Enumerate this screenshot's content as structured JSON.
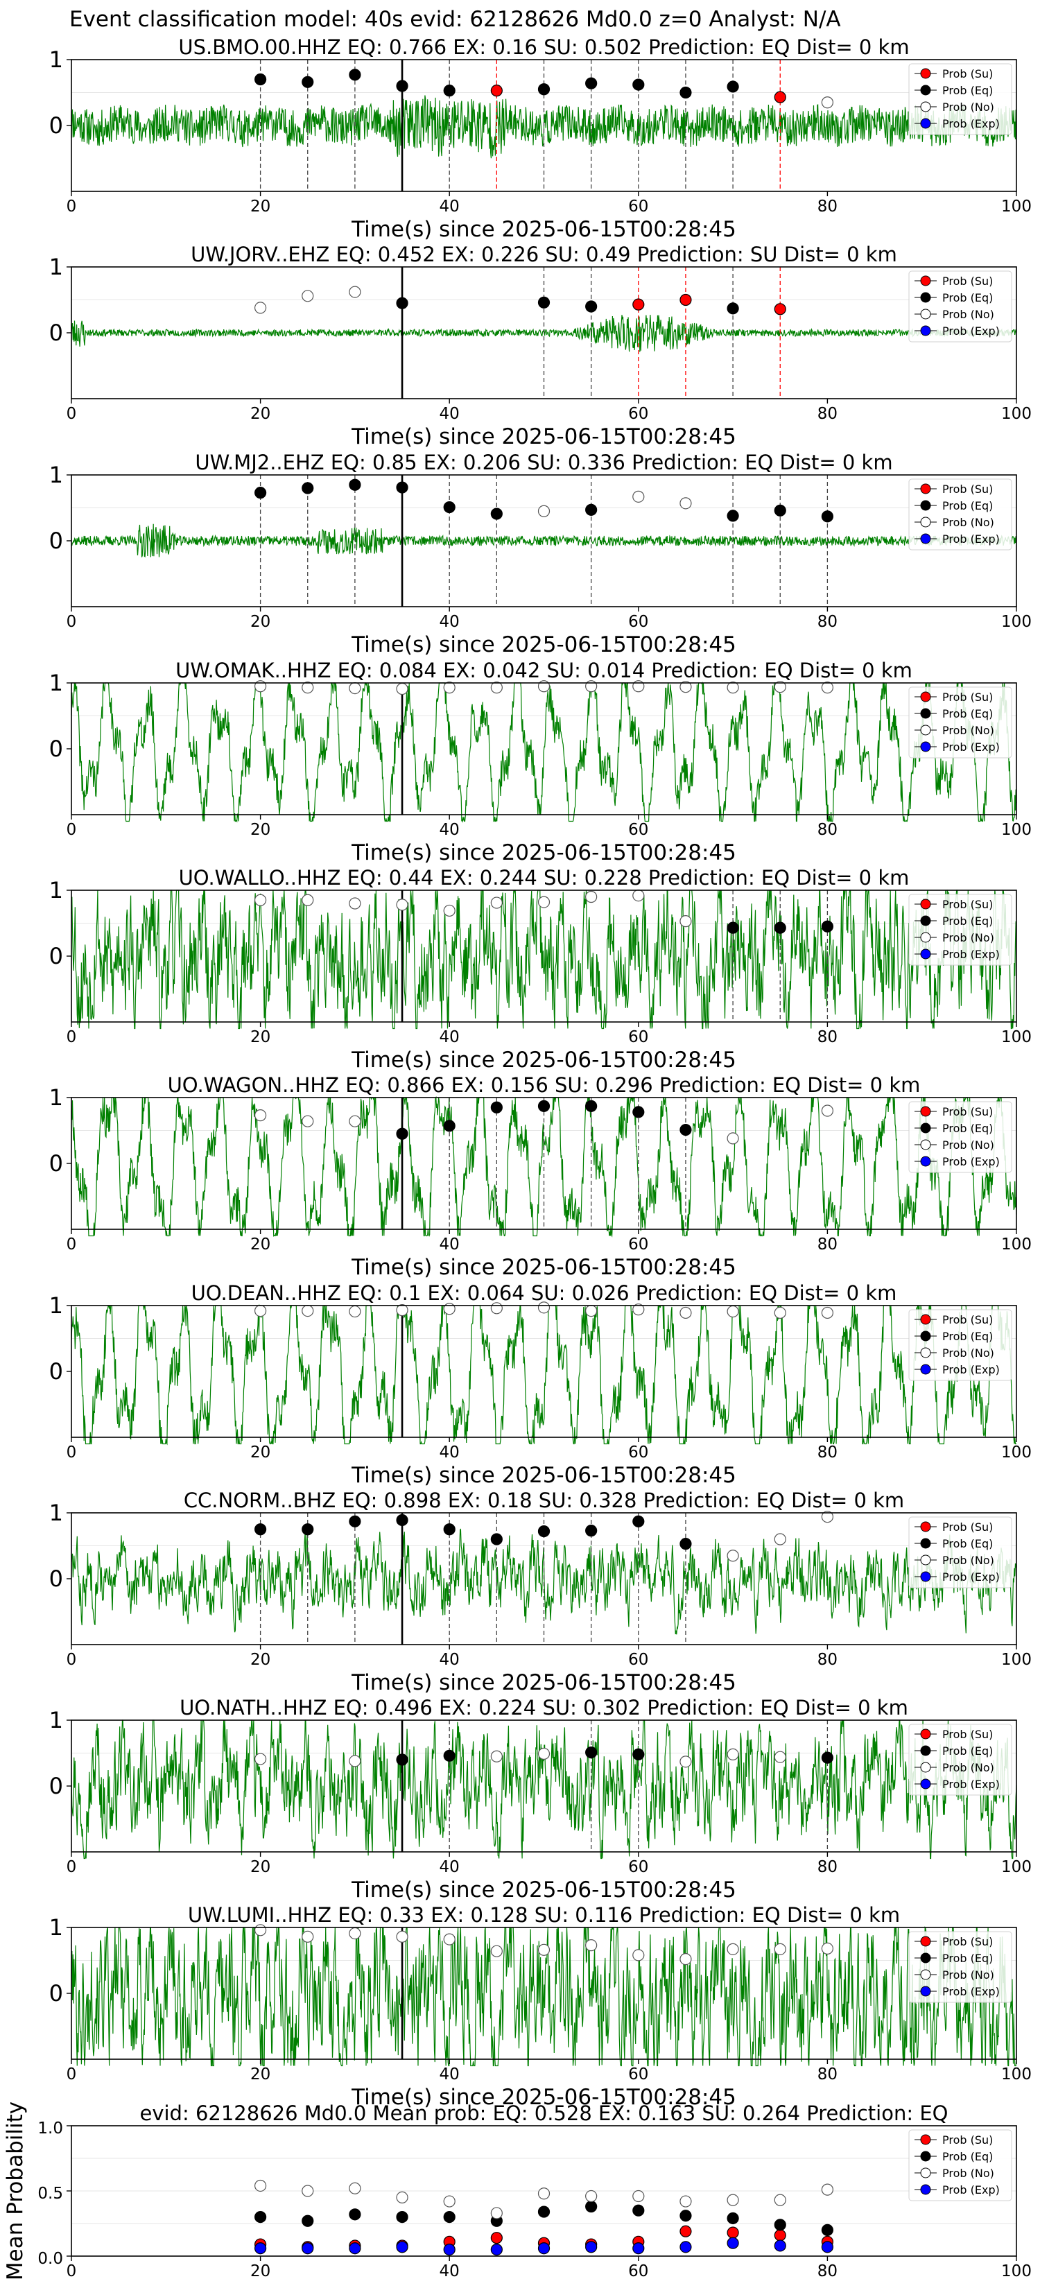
{
  "suptitle": "Event classification model: 40s evid: 62128626 Md0.0 z=0 Analyst: N/A",
  "colors": {
    "waveform": "#008000",
    "su": "#ff0000",
    "eq": "#000000",
    "no": "#ffffff",
    "exp": "#0000ff",
    "eq_line": "#444444",
    "su_line": "#ff0000",
    "arrival_line": "#000000",
    "grid": "#e6e6e6"
  },
  "legend": [
    "Prob (Su)",
    "Prob (Eq)",
    "Prob (No)",
    "Prob (Exp)"
  ],
  "chart_data": [
    {
      "type": "scatter",
      "title": "US.BMO.00.HHZ   EQ: 0.766  EX: 0.16  SU: 0.502   Prediction: EQ    Dist= 0 km",
      "xlabel": "Time(s) since 2025-06-15T00:28:45",
      "xlim": [
        0,
        100
      ],
      "ylim": [
        -1,
        1
      ],
      "xticks": [
        "0",
        "20",
        "40",
        "60",
        "80",
        "100"
      ],
      "yticks": [
        "1",
        "0"
      ],
      "arrival": 35,
      "waveform": {
        "style": "bmo",
        "amp": 0.35,
        "seed": 11
      },
      "points": [
        {
          "t": 20,
          "c": "eq",
          "v": 0.7
        },
        {
          "t": 25,
          "c": "eq",
          "v": 0.66
        },
        {
          "t": 30,
          "c": "eq",
          "v": 0.77
        },
        {
          "t": 35,
          "c": "eq",
          "v": 0.6
        },
        {
          "t": 40,
          "c": "eq",
          "v": 0.53
        },
        {
          "t": 45,
          "c": "su",
          "v": 0.53
        },
        {
          "t": 50,
          "c": "eq",
          "v": 0.55
        },
        {
          "t": 55,
          "c": "eq",
          "v": 0.64
        },
        {
          "t": 60,
          "c": "eq",
          "v": 0.62
        },
        {
          "t": 65,
          "c": "eq",
          "v": 0.5
        },
        {
          "t": 70,
          "c": "eq",
          "v": 0.59
        },
        {
          "t": 75,
          "c": "su",
          "v": 0.43
        },
        {
          "t": 80,
          "c": "no",
          "v": 0.35
        }
      ]
    },
    {
      "type": "scatter",
      "title": "UW.JORV..EHZ   EQ: 0.452  EX: 0.226  SU: 0.49   Prediction: SU    Dist= 0 km",
      "xlabel": "Time(s) since 2025-06-15T00:28:45",
      "xlim": [
        0,
        100
      ],
      "ylim": [
        -1,
        1
      ],
      "xticks": [
        "0",
        "20",
        "40",
        "60",
        "80",
        "100"
      ],
      "yticks": [
        "1",
        "0"
      ],
      "arrival": 35,
      "waveform": {
        "style": "jorv",
        "amp": 0.1,
        "seed": 23
      },
      "points": [
        {
          "t": 20,
          "c": "no",
          "v": 0.38
        },
        {
          "t": 25,
          "c": "no",
          "v": 0.56
        },
        {
          "t": 30,
          "c": "no",
          "v": 0.62
        },
        {
          "t": 35,
          "c": "eq",
          "v": 0.45
        },
        {
          "t": 50,
          "c": "eq",
          "v": 0.46
        },
        {
          "t": 55,
          "c": "eq",
          "v": 0.4
        },
        {
          "t": 60,
          "c": "su",
          "v": 0.43
        },
        {
          "t": 65,
          "c": "su",
          "v": 0.5
        },
        {
          "t": 70,
          "c": "eq",
          "v": 0.37
        },
        {
          "t": 75,
          "c": "su",
          "v": 0.36
        }
      ]
    },
    {
      "type": "scatter",
      "title": "UW.MJ2..EHZ   EQ: 0.85  EX: 0.206  SU: 0.336   Prediction: EQ    Dist= 0 km",
      "xlabel": "Time(s) since 2025-06-15T00:28:45",
      "xlim": [
        0,
        100
      ],
      "ylim": [
        -1,
        1
      ],
      "xticks": [
        "0",
        "20",
        "40",
        "60",
        "80",
        "100"
      ],
      "yticks": [
        "1",
        "0"
      ],
      "arrival": 35,
      "waveform": {
        "style": "mj2",
        "amp": 0.12,
        "seed": 37
      },
      "points": [
        {
          "t": 20,
          "c": "eq",
          "v": 0.73
        },
        {
          "t": 25,
          "c": "eq",
          "v": 0.8
        },
        {
          "t": 30,
          "c": "eq",
          "v": 0.85
        },
        {
          "t": 35,
          "c": "eq",
          "v": 0.81
        },
        {
          "t": 40,
          "c": "eq",
          "v": 0.51
        },
        {
          "t": 45,
          "c": "eq",
          "v": 0.41
        },
        {
          "t": 50,
          "c": "no",
          "v": 0.45
        },
        {
          "t": 55,
          "c": "eq",
          "v": 0.47
        },
        {
          "t": 60,
          "c": "no",
          "v": 0.67
        },
        {
          "t": 65,
          "c": "no",
          "v": 0.57
        },
        {
          "t": 70,
          "c": "eq",
          "v": 0.38
        },
        {
          "t": 75,
          "c": "eq",
          "v": 0.46
        },
        {
          "t": 80,
          "c": "eq",
          "v": 0.37
        }
      ]
    },
    {
      "type": "scatter",
      "title": "UW.OMAK..HHZ   EQ: 0.084  EX: 0.042  SU: 0.014   Prediction: EQ    Dist= 0 km",
      "xlabel": "Time(s) since 2025-06-15T00:28:45",
      "xlim": [
        0,
        100
      ],
      "ylim": [
        -1,
        1
      ],
      "xticks": [
        "0",
        "20",
        "40",
        "60",
        "80",
        "100"
      ],
      "yticks": [
        "1",
        "0"
      ],
      "arrival": 35,
      "waveform": {
        "style": "swell",
        "amp": 0.5,
        "seed": 41
      },
      "points": [
        {
          "t": 20,
          "c": "no",
          "v": 0.95
        },
        {
          "t": 25,
          "c": "no",
          "v": 0.93
        },
        {
          "t": 30,
          "c": "no",
          "v": 0.92
        },
        {
          "t": 35,
          "c": "no",
          "v": 0.91
        },
        {
          "t": 40,
          "c": "no",
          "v": 0.93
        },
        {
          "t": 45,
          "c": "no",
          "v": 0.93
        },
        {
          "t": 50,
          "c": "no",
          "v": 0.95
        },
        {
          "t": 55,
          "c": "no",
          "v": 0.95
        },
        {
          "t": 60,
          "c": "no",
          "v": 0.95
        },
        {
          "t": 65,
          "c": "no",
          "v": 0.94
        },
        {
          "t": 70,
          "c": "no",
          "v": 0.93
        },
        {
          "t": 75,
          "c": "no",
          "v": 0.94
        },
        {
          "t": 80,
          "c": "no",
          "v": 0.93
        }
      ]
    },
    {
      "type": "scatter",
      "title": "UO.WALLO..HHZ   EQ: 0.44  EX: 0.244  SU: 0.228   Prediction: EQ    Dist= 0 km",
      "xlabel": "Time(s) since 2025-06-15T00:28:45",
      "xlim": [
        0,
        100
      ],
      "ylim": [
        -1,
        1
      ],
      "xticks": [
        "0",
        "20",
        "40",
        "60",
        "80",
        "100"
      ],
      "yticks": [
        "1",
        "0"
      ],
      "arrival": 35,
      "waveform": {
        "style": "noisy",
        "amp": 0.7,
        "seed": 53
      },
      "points": [
        {
          "t": 20,
          "c": "no",
          "v": 0.85
        },
        {
          "t": 25,
          "c": "no",
          "v": 0.85
        },
        {
          "t": 30,
          "c": "no",
          "v": 0.8
        },
        {
          "t": 35,
          "c": "no",
          "v": 0.78
        },
        {
          "t": 40,
          "c": "no",
          "v": 0.69
        },
        {
          "t": 45,
          "c": "no",
          "v": 0.81
        },
        {
          "t": 50,
          "c": "no",
          "v": 0.82
        },
        {
          "t": 55,
          "c": "no",
          "v": 0.9
        },
        {
          "t": 60,
          "c": "no",
          "v": 0.92
        },
        {
          "t": 65,
          "c": "no",
          "v": 0.53
        },
        {
          "t": 70,
          "c": "eq",
          "v": 0.43
        },
        {
          "t": 75,
          "c": "eq",
          "v": 0.43
        },
        {
          "t": 80,
          "c": "eq",
          "v": 0.45
        }
      ]
    },
    {
      "type": "scatter",
      "title": "UO.WAGON..HHZ   EQ: 0.866  EX: 0.156  SU: 0.296   Prediction: EQ    Dist= 0 km",
      "xlabel": "Time(s) since 2025-06-15T00:28:45",
      "xlim": [
        0,
        100
      ],
      "ylim": [
        -1,
        1
      ],
      "xticks": [
        "0",
        "20",
        "40",
        "60",
        "80",
        "100"
      ],
      "yticks": [
        "1",
        "0"
      ],
      "arrival": 35,
      "waveform": {
        "style": "swell",
        "amp": 0.55,
        "seed": 67
      },
      "points": [
        {
          "t": 20,
          "c": "no",
          "v": 0.73
        },
        {
          "t": 25,
          "c": "no",
          "v": 0.64
        },
        {
          "t": 30,
          "c": "no",
          "v": 0.64
        },
        {
          "t": 35,
          "c": "eq",
          "v": 0.45
        },
        {
          "t": 40,
          "c": "eq",
          "v": 0.57
        },
        {
          "t": 45,
          "c": "eq",
          "v": 0.85
        },
        {
          "t": 50,
          "c": "eq",
          "v": 0.87
        },
        {
          "t": 55,
          "c": "eq",
          "v": 0.87
        },
        {
          "t": 60,
          "c": "eq",
          "v": 0.78
        },
        {
          "t": 65,
          "c": "eq",
          "v": 0.51
        },
        {
          "t": 70,
          "c": "no",
          "v": 0.38
        },
        {
          "t": 80,
          "c": "no",
          "v": 0.8
        }
      ]
    },
    {
      "type": "scatter",
      "title": "UO.DEAN..HHZ   EQ: 0.1  EX: 0.064  SU: 0.026   Prediction: EQ    Dist= 0 km",
      "xlabel": "Time(s) since 2025-06-15T00:28:45",
      "xlim": [
        0,
        100
      ],
      "ylim": [
        -1,
        1
      ],
      "xticks": [
        "0",
        "20",
        "40",
        "60",
        "80",
        "100"
      ],
      "yticks": [
        "1",
        "0"
      ],
      "arrival": 35,
      "waveform": {
        "style": "swell",
        "amp": 0.6,
        "seed": 71
      },
      "points": [
        {
          "t": 20,
          "c": "no",
          "v": 0.92
        },
        {
          "t": 25,
          "c": "no",
          "v": 0.92
        },
        {
          "t": 30,
          "c": "no",
          "v": 0.91
        },
        {
          "t": 35,
          "c": "no",
          "v": 0.93
        },
        {
          "t": 40,
          "c": "no",
          "v": 0.95
        },
        {
          "t": 45,
          "c": "no",
          "v": 0.96
        },
        {
          "t": 50,
          "c": "no",
          "v": 0.97
        },
        {
          "t": 55,
          "c": "no",
          "v": 0.92
        },
        {
          "t": 60,
          "c": "no",
          "v": 0.94
        },
        {
          "t": 65,
          "c": "no",
          "v": 0.89
        },
        {
          "t": 70,
          "c": "no",
          "v": 0.91
        },
        {
          "t": 75,
          "c": "no",
          "v": 0.89
        },
        {
          "t": 80,
          "c": "no",
          "v": 0.89
        }
      ]
    },
    {
      "type": "scatter",
      "title": "CC.NORM..BHZ   EQ: 0.898  EX: 0.18  SU: 0.328   Prediction: EQ    Dist= 0 km",
      "xlabel": "Time(s) since 2025-06-15T00:28:45",
      "xlim": [
        0,
        100
      ],
      "ylim": [
        -1,
        1
      ],
      "xticks": [
        "0",
        "20",
        "40",
        "60",
        "80",
        "100"
      ],
      "yticks": [
        "1",
        "0"
      ],
      "arrival": 35,
      "waveform": {
        "style": "noisy",
        "amp": 0.35,
        "seed": 83
      },
      "points": [
        {
          "t": 20,
          "c": "eq",
          "v": 0.75
        },
        {
          "t": 25,
          "c": "eq",
          "v": 0.75
        },
        {
          "t": 30,
          "c": "eq",
          "v": 0.87
        },
        {
          "t": 35,
          "c": "eq",
          "v": 0.89
        },
        {
          "t": 40,
          "c": "eq",
          "v": 0.75
        },
        {
          "t": 45,
          "c": "eq",
          "v": 0.6
        },
        {
          "t": 50,
          "c": "eq",
          "v": 0.72
        },
        {
          "t": 55,
          "c": "eq",
          "v": 0.73
        },
        {
          "t": 60,
          "c": "eq",
          "v": 0.87
        },
        {
          "t": 65,
          "c": "eq",
          "v": 0.53
        },
        {
          "t": 70,
          "c": "no",
          "v": 0.35
        },
        {
          "t": 75,
          "c": "no",
          "v": 0.6
        },
        {
          "t": 80,
          "c": "no",
          "v": 0.94
        }
      ]
    },
    {
      "type": "scatter",
      "title": "UO.NATH..HHZ   EQ: 0.496  EX: 0.224  SU: 0.302   Prediction: EQ    Dist= 0 km",
      "xlabel": "Time(s) since 2025-06-15T00:28:45",
      "xlim": [
        0,
        100
      ],
      "ylim": [
        -1,
        1
      ],
      "xticks": [
        "0",
        "20",
        "40",
        "60",
        "80",
        "100"
      ],
      "yticks": [
        "1",
        "0"
      ],
      "arrival": 35,
      "waveform": {
        "style": "noisy",
        "amp": 0.55,
        "seed": 97
      },
      "points": [
        {
          "t": 20,
          "c": "no",
          "v": 0.41
        },
        {
          "t": 30,
          "c": "no",
          "v": 0.38
        },
        {
          "t": 35,
          "c": "eq",
          "v": 0.4
        },
        {
          "t": 40,
          "c": "eq",
          "v": 0.46
        },
        {
          "t": 45,
          "c": "no",
          "v": 0.45
        },
        {
          "t": 50,
          "c": "no",
          "v": 0.49
        },
        {
          "t": 55,
          "c": "eq",
          "v": 0.51
        },
        {
          "t": 60,
          "c": "eq",
          "v": 0.48
        },
        {
          "t": 65,
          "c": "no",
          "v": 0.37
        },
        {
          "t": 70,
          "c": "no",
          "v": 0.48
        },
        {
          "t": 75,
          "c": "no",
          "v": 0.44
        },
        {
          "t": 80,
          "c": "eq",
          "v": 0.43
        }
      ]
    },
    {
      "type": "scatter",
      "title": "UW.LUMI..HHZ   EQ: 0.33  EX: 0.128  SU: 0.116   Prediction: EQ    Dist= 0 km",
      "xlabel": "Time(s) since 2025-06-15T00:28:45",
      "xlim": [
        0,
        100
      ],
      "ylim": [
        -1,
        1
      ],
      "xticks": [
        "0",
        "20",
        "40",
        "60",
        "80",
        "100"
      ],
      "yticks": [
        "1",
        "0"
      ],
      "arrival": 35,
      "waveform": {
        "style": "noisy",
        "amp": 0.8,
        "seed": 101
      },
      "points": [
        {
          "t": 20,
          "c": "no",
          "v": 0.96
        },
        {
          "t": 25,
          "c": "no",
          "v": 0.86
        },
        {
          "t": 30,
          "c": "no",
          "v": 0.91
        },
        {
          "t": 35,
          "c": "no",
          "v": 0.86
        },
        {
          "t": 40,
          "c": "no",
          "v": 0.82
        },
        {
          "t": 45,
          "c": "no",
          "v": 0.64
        },
        {
          "t": 50,
          "c": "no",
          "v": 0.66
        },
        {
          "t": 55,
          "c": "no",
          "v": 0.73
        },
        {
          "t": 60,
          "c": "no",
          "v": 0.58
        },
        {
          "t": 65,
          "c": "no",
          "v": 0.52
        },
        {
          "t": 70,
          "c": "no",
          "v": 0.67
        },
        {
          "t": 75,
          "c": "no",
          "v": 0.67
        },
        {
          "t": 80,
          "c": "no",
          "v": 0.68
        }
      ]
    },
    {
      "type": "scatter",
      "title": "evid: 62128626  Md0.0   Mean prob:   EQ: 0.528  EX: 0.163  SU: 0.264   Prediction: EQ",
      "ylabel": "Mean Probability",
      "xlim": [
        0,
        100
      ],
      "ylim": [
        0,
        1
      ],
      "xticks": [
        "0",
        "20",
        "40",
        "60",
        "80",
        "100"
      ],
      "yticks": [
        "1.0",
        "0.5",
        "0.0"
      ],
      "x": [
        20,
        25,
        30,
        35,
        40,
        45,
        50,
        55,
        60,
        65,
        70,
        75,
        80
      ],
      "series": [
        {
          "name": "Prob (Su)",
          "c": "su",
          "values": [
            0.09,
            0.07,
            0.08,
            0.08,
            0.11,
            0.14,
            0.1,
            0.09,
            0.11,
            0.19,
            0.18,
            0.16,
            0.11
          ]
        },
        {
          "name": "Prob (Eq)",
          "c": "eq",
          "values": [
            0.3,
            0.27,
            0.32,
            0.3,
            0.3,
            0.27,
            0.34,
            0.38,
            0.35,
            0.31,
            0.29,
            0.24,
            0.2
          ]
        },
        {
          "name": "Prob (No)",
          "c": "no",
          "values": [
            0.54,
            0.5,
            0.52,
            0.45,
            0.42,
            0.33,
            0.48,
            0.46,
            0.46,
            0.42,
            0.43,
            0.43,
            0.51
          ]
        },
        {
          "name": "Prob (Exp)",
          "c": "exp",
          "values": [
            0.06,
            0.06,
            0.06,
            0.07,
            0.05,
            0.05,
            0.06,
            0.07,
            0.06,
            0.07,
            0.1,
            0.08,
            0.07
          ]
        }
      ]
    }
  ]
}
